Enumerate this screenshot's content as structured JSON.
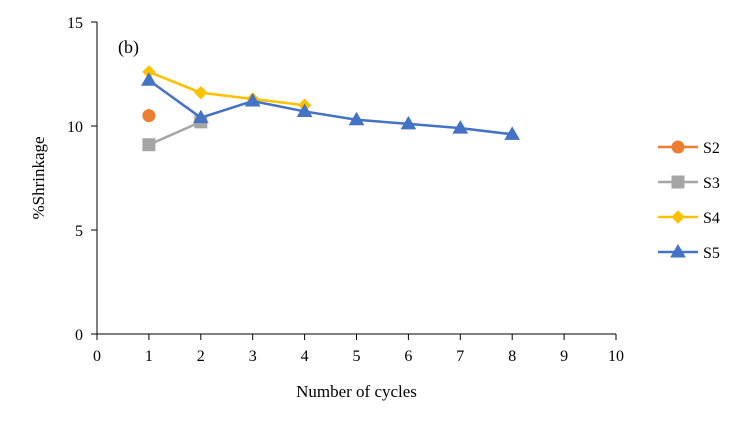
{
  "chart_data": {
    "type": "line",
    "panel_label": "(b)",
    "xlabel": "Number of cycles",
    "ylabel": "%Shrinkage",
    "xlim": [
      0,
      10
    ],
    "ylim": [
      0,
      15
    ],
    "xticks": [
      0,
      1,
      2,
      3,
      4,
      5,
      6,
      7,
      8,
      9,
      10
    ],
    "yticks": [
      0,
      5,
      10,
      15
    ],
    "grid": false,
    "legend_position": "right",
    "series": [
      {
        "name": "S2",
        "color": "#ED7D31",
        "marker": "circle",
        "x": [
          1
        ],
        "y": [
          10.5
        ]
      },
      {
        "name": "S3",
        "color": "#A5A5A5",
        "marker": "square",
        "x": [
          1,
          2
        ],
        "y": [
          9.1,
          10.2
        ]
      },
      {
        "name": "S4",
        "color": "#FFC000",
        "marker": "diamond",
        "x": [
          1,
          2,
          3,
          4
        ],
        "y": [
          12.6,
          11.6,
          11.3,
          11.0
        ]
      },
      {
        "name": "S5",
        "color": "#4472C4",
        "marker": "triangle",
        "x": [
          1,
          2,
          3,
          4,
          5,
          6,
          7,
          8
        ],
        "y": [
          12.2,
          10.4,
          11.2,
          10.7,
          10.3,
          10.1,
          9.9,
          9.6
        ]
      }
    ]
  }
}
